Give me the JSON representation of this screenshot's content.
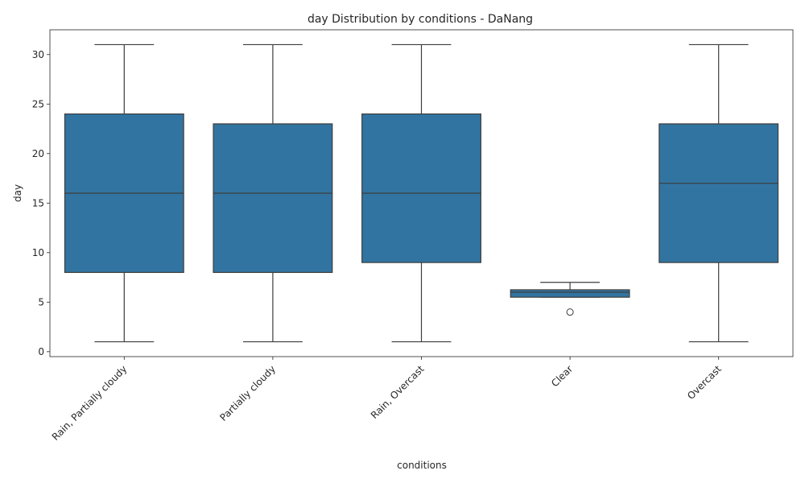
{
  "chart_data": {
    "type": "box",
    "title": "day Distribution by conditions - DaNang",
    "xlabel": "conditions",
    "ylabel": "day",
    "ylim": [
      -0.5,
      32.5
    ],
    "yticks": [
      0,
      5,
      10,
      15,
      20,
      25,
      30
    ],
    "grid": false,
    "colors": {
      "box": "#3274a1",
      "line": "#3d3d3d"
    },
    "categories": [
      "Rain, Partially cloudy",
      "Partially cloudy",
      "Rain, Overcast",
      "Clear",
      "Overcast"
    ],
    "boxes": [
      {
        "category": "Rain, Partially cloudy",
        "whisker_low": 1,
        "q1": 8,
        "median": 16,
        "q3": 24,
        "whisker_high": 31,
        "outliers": []
      },
      {
        "category": "Partially cloudy",
        "whisker_low": 1,
        "q1": 8,
        "median": 16,
        "q3": 23,
        "whisker_high": 31,
        "outliers": []
      },
      {
        "category": "Rain, Overcast",
        "whisker_low": 1,
        "q1": 9,
        "median": 16,
        "q3": 24,
        "whisker_high": 31,
        "outliers": []
      },
      {
        "category": "Clear",
        "whisker_low": 5.5,
        "q1": 5.5,
        "median": 6,
        "q3": 6.25,
        "whisker_high": 7,
        "outliers": [
          4
        ]
      },
      {
        "category": "Overcast",
        "whisker_low": 1,
        "q1": 9,
        "median": 17,
        "q3": 23,
        "whisker_high": 31,
        "outliers": []
      }
    ]
  }
}
